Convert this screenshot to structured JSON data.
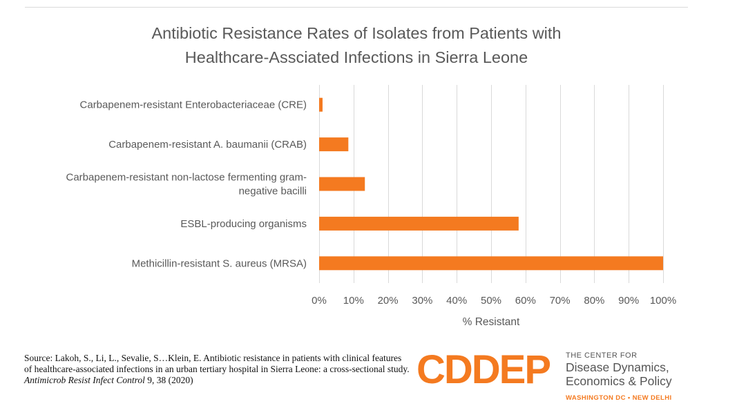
{
  "colors": {
    "bar": "#f47a20",
    "grid": "#d9d9d9",
    "text": "#595959",
    "brand": "#f47a20"
  },
  "chart_data": {
    "type": "bar",
    "orientation": "horizontal",
    "title": "Antibiotic Resistance Rates of Isolates from Patients with Healthcare-Assciated Infections in Sierra Leone",
    "title_lines": [
      "Antibiotic Resistance Rates of Isolates from Patients with",
      "Healthcare-Assciated Infections in Sierra Leone"
    ],
    "categories": [
      [
        "Carbapenem-resistant Enterobacteriaceae (CRE)"
      ],
      [
        "Carbapenem-resistant A. baumanii (CRAB)"
      ],
      [
        "Carbapenem-resistant non-lactose fermenting gram-",
        "negative bacilli"
      ],
      [
        "ESBL-producing organisms"
      ],
      [
        "Methicillin-resistant S. aureus (MRSA)"
      ]
    ],
    "values": [
      1,
      8.5,
      13.3,
      58,
      100
    ],
    "xlabel": "% Resistant",
    "xlim": [
      0,
      100
    ],
    "ticks": [
      0,
      10,
      20,
      30,
      40,
      50,
      60,
      70,
      80,
      90,
      100
    ],
    "tick_labels": [
      "0%",
      "10%",
      "20%",
      "30%",
      "40%",
      "50%",
      "60%",
      "70%",
      "80%",
      "90%",
      "100%"
    ],
    "grid": true,
    "legend": "none"
  },
  "source": {
    "prefix": "Source: Lakoh, S., Li, L., Sevalie, S…Klein, E. Antibiotic resistance in patients with clinical features of healthcare-associated infections in an urban tertiary hospital in Sierra Leone: a cross-sectional study. ",
    "journal": "Antimicrob Resist Infect Control",
    "suffix": " 9, 38 (2020)"
  },
  "logo": {
    "mark": "CDDEP",
    "small": "THE CENTER FOR",
    "line1": "Disease Dynamics,",
    "line2": "Economics & Policy",
    "cities": "WASHINGTON DC • NEW DELHI"
  }
}
